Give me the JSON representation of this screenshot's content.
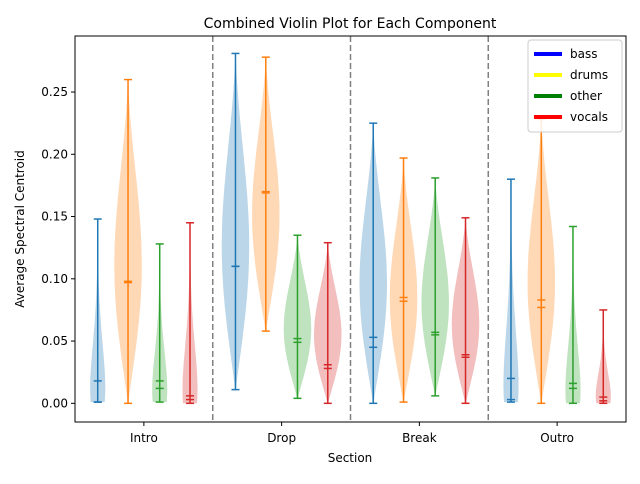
{
  "chart_data": {
    "type": "violin",
    "title": "Combined Violin Plot for Each Component",
    "xlabel": "Section",
    "ylabel": "Average Spectral Centroid",
    "ylim": [
      -0.015,
      0.295
    ],
    "yticks": [
      0.0,
      0.05,
      0.1,
      0.15,
      0.2,
      0.25
    ],
    "ytick_labels": [
      "0.00",
      "0.05",
      "0.10",
      "0.15",
      "0.20",
      "0.25"
    ],
    "categories": [
      "Intro",
      "Drop",
      "Break",
      "Outro"
    ],
    "legend": {
      "position": "upper right",
      "entries": [
        {
          "name": "bass",
          "color": "#0000ff"
        },
        {
          "name": "drums",
          "color": "#ffff00"
        },
        {
          "name": "other",
          "color": "#008000"
        },
        {
          "name": "vocals",
          "color": "#ff0000"
        }
      ]
    },
    "series": [
      {
        "name": "bass",
        "color": "#1f77b4",
        "values": [
          {
            "min": 0.001,
            "max": 0.148,
            "mean": 0.018,
            "median": 0.001
          },
          {
            "min": 0.011,
            "max": 0.281,
            "mean": 0.11,
            "median": 0.11
          },
          {
            "min": 0.0,
            "max": 0.225,
            "mean": 0.053,
            "median": 0.045
          },
          {
            "min": 0.001,
            "max": 0.18,
            "mean": 0.02,
            "median": 0.003
          }
        ]
      },
      {
        "name": "drums",
        "color": "#ff7f0e",
        "values": [
          {
            "min": 0.0,
            "max": 0.26,
            "mean": 0.098,
            "median": 0.097
          },
          {
            "min": 0.058,
            "max": 0.278,
            "mean": 0.17,
            "median": 0.169
          },
          {
            "min": 0.001,
            "max": 0.197,
            "mean": 0.085,
            "median": 0.082
          },
          {
            "min": 0.0,
            "max": 0.228,
            "mean": 0.083,
            "median": 0.077
          }
        ]
      },
      {
        "name": "other",
        "color": "#2ca02c",
        "values": [
          {
            "min": 0.001,
            "max": 0.128,
            "mean": 0.018,
            "median": 0.012
          },
          {
            "min": 0.004,
            "max": 0.135,
            "mean": 0.052,
            "median": 0.049
          },
          {
            "min": 0.006,
            "max": 0.181,
            "mean": 0.057,
            "median": 0.055
          },
          {
            "min": 0.0,
            "max": 0.142,
            "mean": 0.016,
            "median": 0.012
          }
        ]
      },
      {
        "name": "vocals",
        "color": "#d62728",
        "values": [
          {
            "min": 0.0,
            "max": 0.145,
            "mean": 0.006,
            "median": 0.003
          },
          {
            "min": 0.0,
            "max": 0.129,
            "mean": 0.031,
            "median": 0.028
          },
          {
            "min": 0.0,
            "max": 0.149,
            "mean": 0.039,
            "median": 0.037
          },
          {
            "min": 0.0,
            "max": 0.075,
            "mean": 0.005,
            "median": 0.002
          }
        ]
      }
    ],
    "density_shapes": [
      [
        "skewed-bottom",
        "wide-mid",
        "wide-bottom",
        "skewed-bottom"
      ],
      [
        "wide-mid",
        "wide-mid",
        "wide-mid",
        "wide-mid"
      ],
      [
        "skewed-bottom",
        "wide-mid",
        "wide-mid",
        "skewed-bottom"
      ],
      [
        "skewed-bottom",
        "wide-mid",
        "wide-mid",
        "skewed-bottom"
      ]
    ]
  }
}
